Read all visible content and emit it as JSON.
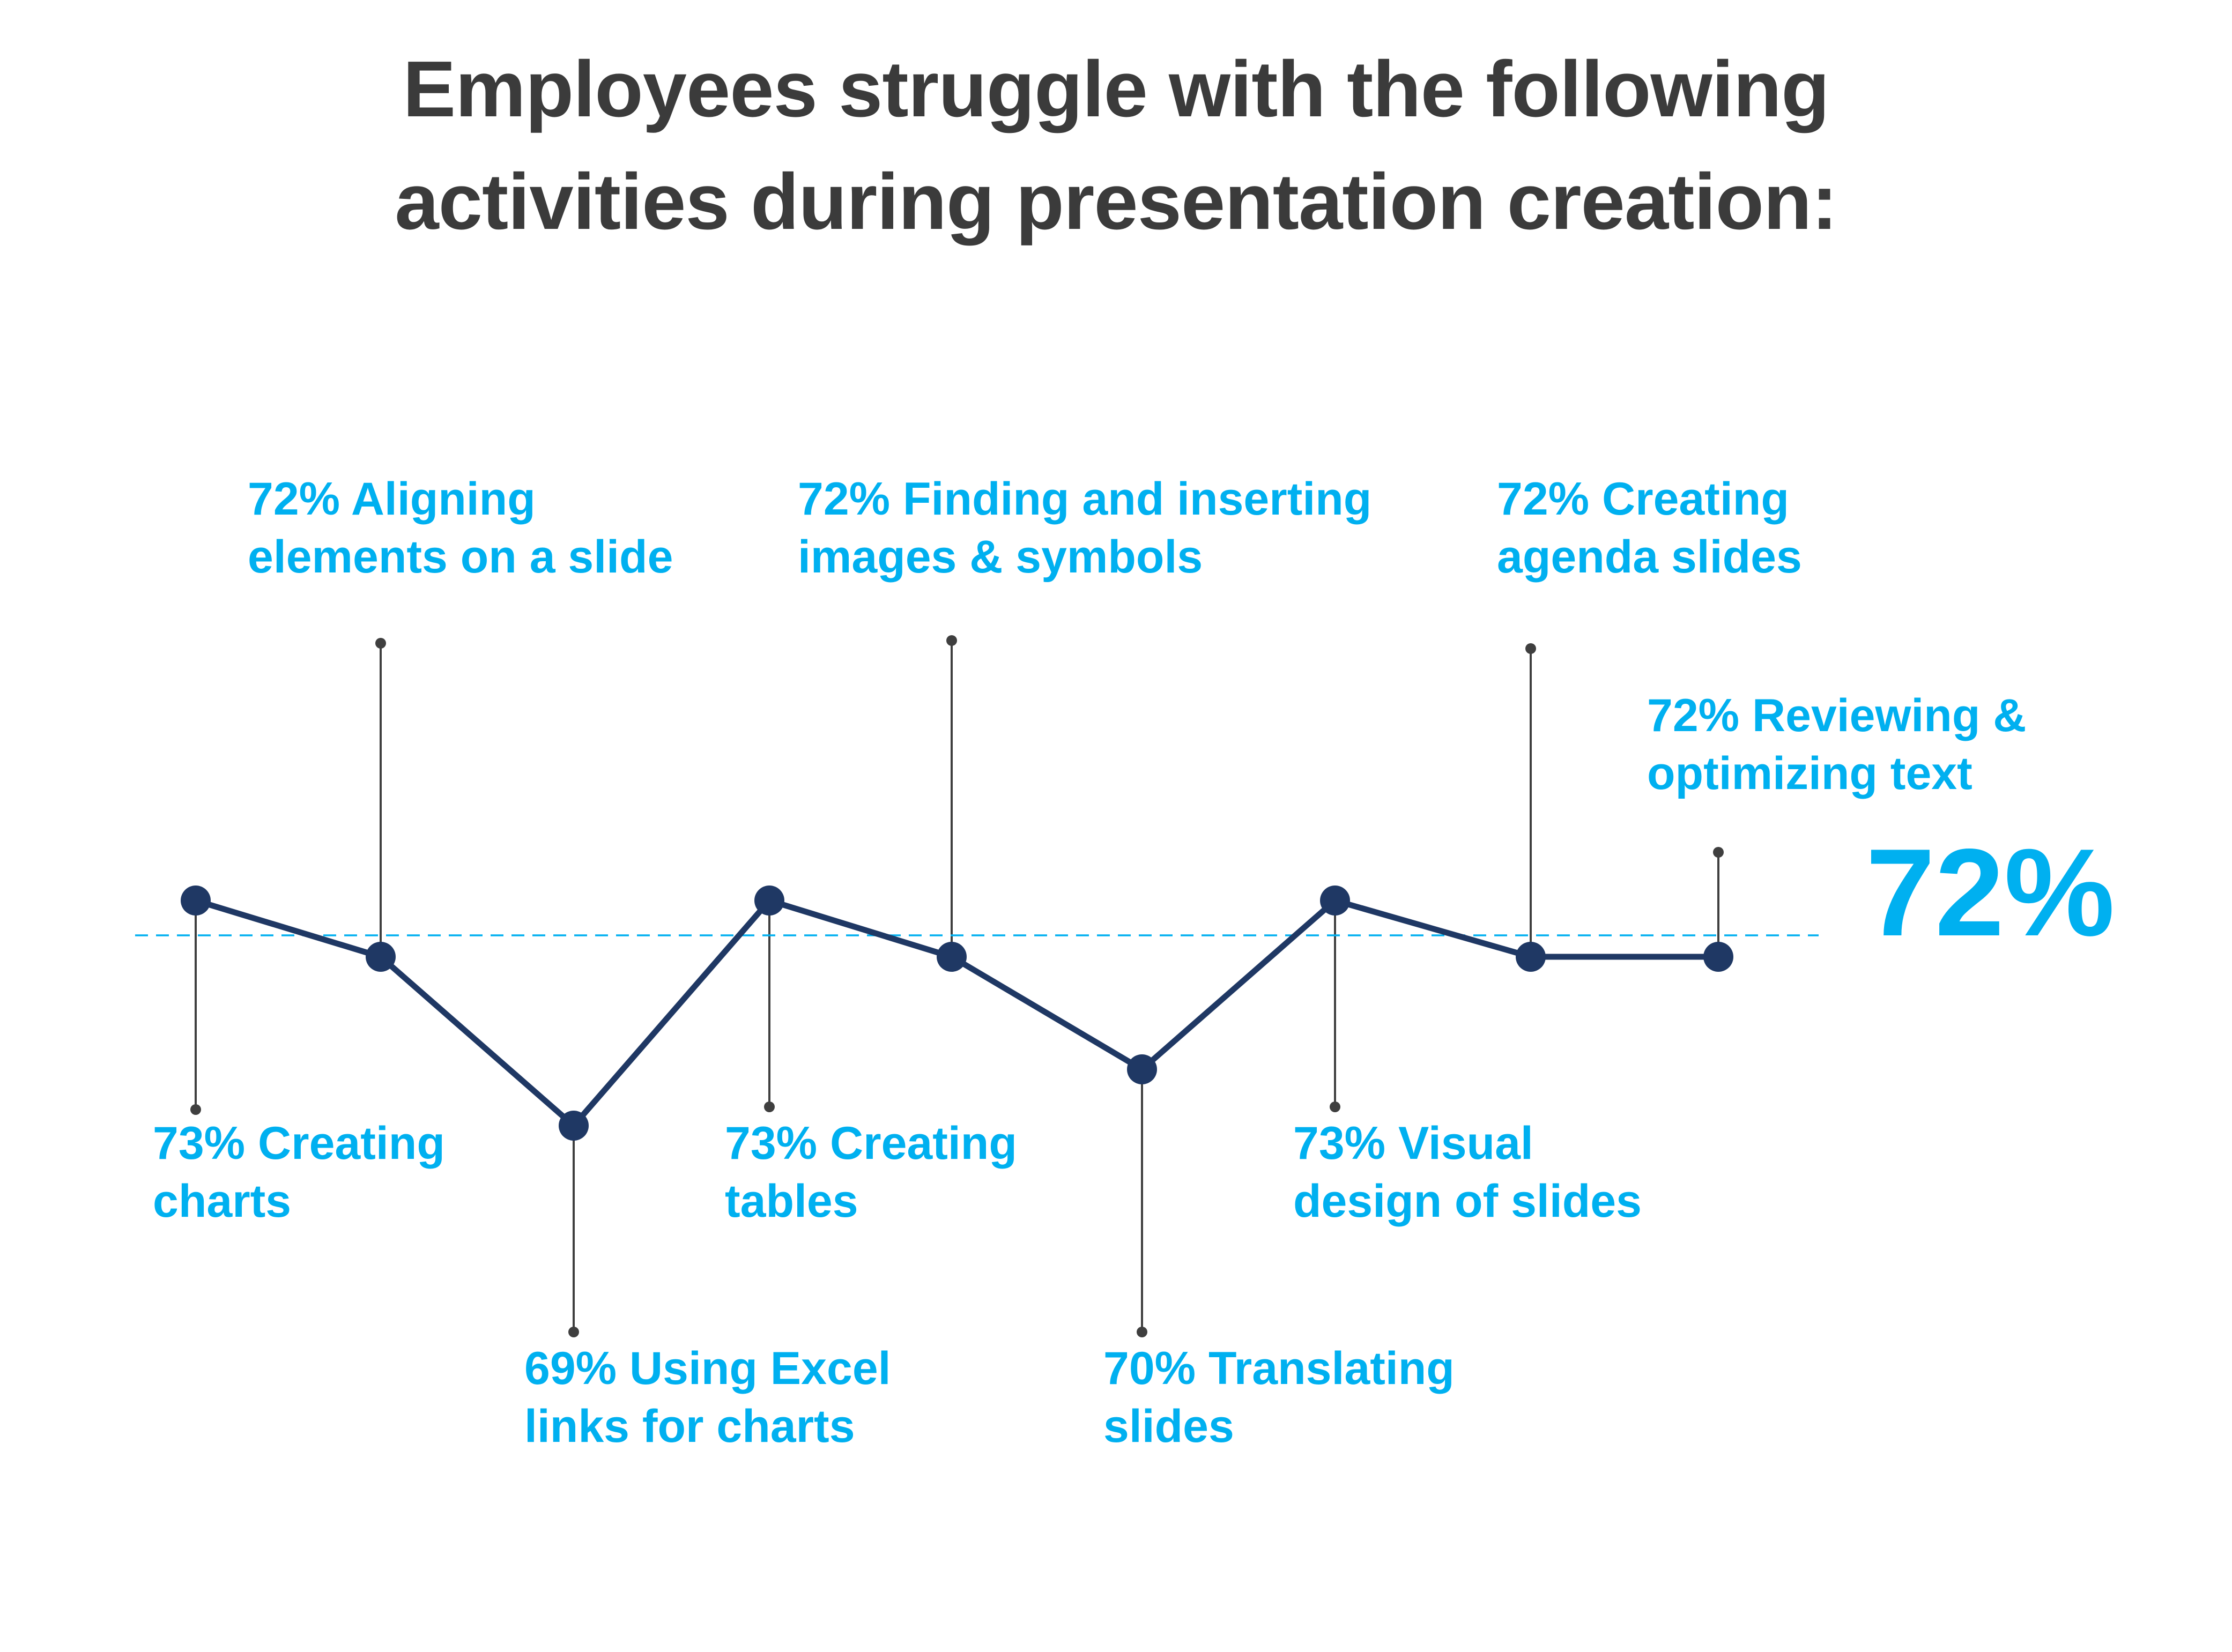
{
  "title": "Employees struggle with the following\nactivities during presentation creation:",
  "reference": {
    "label": "72%"
  },
  "colors": {
    "accent": "#00B0F0",
    "line": "#1F3864",
    "title": "#3B3B3B",
    "connector": "#3F3F3F",
    "background": "#FFFFFF"
  },
  "chart_data": {
    "type": "line",
    "title": "Employees struggle with the following activities during presentation creation:",
    "categories": [
      "Creating charts",
      "Aligning elements on a slide",
      "Using Excel links for charts",
      "Creating tables",
      "Finding and inserting images & symbols",
      "Translating slides",
      "Visual design of slides",
      "Creating agenda slides",
      "Reviewing & optimizing text"
    ],
    "values": [
      73,
      72,
      69,
      73,
      72,
      70,
      73,
      72,
      72
    ],
    "unit": "%",
    "reference_line": 72,
    "reference_label": "72%",
    "ylim": [
      68,
      74
    ],
    "grid": false,
    "legend": false
  },
  "labels": [
    {
      "id": "creating-charts",
      "text": "73% Creating\ncharts"
    },
    {
      "id": "aligning-elements",
      "text": "72% Aligning\nelements on a slide"
    },
    {
      "id": "excel-links",
      "text": "69% Using Excel\nlinks for charts"
    },
    {
      "id": "creating-tables",
      "text": "73% Creating\ntables"
    },
    {
      "id": "finding-images",
      "text": "72% Finding and inserting\nimages & symbols"
    },
    {
      "id": "translating-slides",
      "text": "70% Translating\nslides"
    },
    {
      "id": "visual-design",
      "text": "73% Visual\ndesign of slides"
    },
    {
      "id": "agenda-slides",
      "text": "72% Creating\nagenda slides"
    },
    {
      "id": "reviewing-text",
      "text": "72% Reviewing &\noptimizing text"
    }
  ]
}
